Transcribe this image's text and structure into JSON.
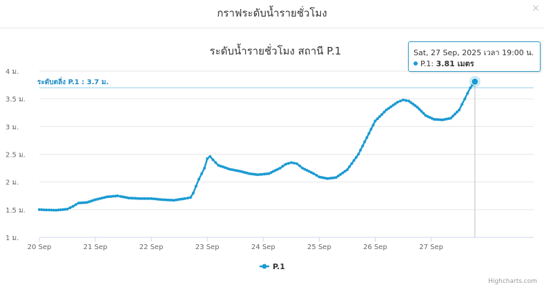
{
  "modal": {
    "title": "กราฟระดับน้ำรายชั่วโมง",
    "close_label": "×"
  },
  "tooltip": {
    "header": "Sat, 27 Sep, 2025 เวลา 19:00 น.",
    "series_label": "P.1: ",
    "value": "3.81",
    "unit": " เมตร"
  },
  "credits": "Highcharts.com",
  "colors": {
    "series": "#1a9ad2",
    "plotline": "#8fcfe8",
    "plotline_label": "#1a8ac2"
  },
  "chart_data": {
    "type": "line",
    "title": "ระดับน้ำรายชั่วโมง สถานี P.1",
    "xlabel": "",
    "ylabel": "",
    "x_range": [
      0,
      8.83
    ],
    "ylim": [
      1,
      4
    ],
    "x_ticks": [
      {
        "x": 0,
        "label": "20 Sep"
      },
      {
        "x": 1,
        "label": "21 Sep"
      },
      {
        "x": 2,
        "label": "22 Sep"
      },
      {
        "x": 3,
        "label": "23 Sep"
      },
      {
        "x": 4,
        "label": "24 Sep"
      },
      {
        "x": 5,
        "label": "25 Sep"
      },
      {
        "x": 6,
        "label": "26 Sep"
      },
      {
        "x": 7,
        "label": "27 Sep"
      }
    ],
    "y_ticks": [
      {
        "y": 1,
        "label": "1 ม."
      },
      {
        "y": 1.5,
        "label": "1.5 ม."
      },
      {
        "y": 2,
        "label": "2 ม."
      },
      {
        "y": 2.5,
        "label": "2.5 ม."
      },
      {
        "y": 3,
        "label": "3 ม."
      },
      {
        "y": 3.5,
        "label": "3.5 ม."
      },
      {
        "y": 4,
        "label": "4 ม."
      }
    ],
    "plot_line": {
      "y": 3.7,
      "label": "ระดับตลิ่ง P.1 : 3.7 ม."
    },
    "legend": {
      "position": "bottom-center"
    },
    "series": [
      {
        "name": "P.1",
        "points": [
          [
            0,
            1.5
          ],
          [
            0.3,
            1.49
          ],
          [
            0.5,
            1.51
          ],
          [
            0.6,
            1.56
          ],
          [
            0.7,
            1.62
          ],
          [
            0.85,
            1.63
          ],
          [
            1.0,
            1.68
          ],
          [
            1.2,
            1.73
          ],
          [
            1.4,
            1.75
          ],
          [
            1.45,
            1.74
          ],
          [
            1.6,
            1.71
          ],
          [
            1.8,
            1.7
          ],
          [
            2.0,
            1.7
          ],
          [
            2.2,
            1.68
          ],
          [
            2.4,
            1.67
          ],
          [
            2.6,
            1.7
          ],
          [
            2.7,
            1.72
          ],
          [
            2.75,
            1.8
          ],
          [
            2.85,
            2.05
          ],
          [
            2.95,
            2.25
          ],
          [
            3.0,
            2.42
          ],
          [
            3.05,
            2.46
          ],
          [
            3.1,
            2.4
          ],
          [
            3.2,
            2.3
          ],
          [
            3.4,
            2.23
          ],
          [
            3.6,
            2.19
          ],
          [
            3.75,
            2.15
          ],
          [
            3.9,
            2.13
          ],
          [
            4.1,
            2.15
          ],
          [
            4.3,
            2.25
          ],
          [
            4.4,
            2.32
          ],
          [
            4.5,
            2.35
          ],
          [
            4.6,
            2.33
          ],
          [
            4.7,
            2.25
          ],
          [
            4.9,
            2.15
          ],
          [
            5.0,
            2.09
          ],
          [
            5.15,
            2.06
          ],
          [
            5.3,
            2.08
          ],
          [
            5.5,
            2.22
          ],
          [
            5.7,
            2.5
          ],
          [
            5.85,
            2.8
          ],
          [
            6.0,
            3.1
          ],
          [
            6.2,
            3.3
          ],
          [
            6.4,
            3.44
          ],
          [
            6.5,
            3.48
          ],
          [
            6.6,
            3.46
          ],
          [
            6.75,
            3.35
          ],
          [
            6.9,
            3.2
          ],
          [
            7.05,
            3.13
          ],
          [
            7.2,
            3.12
          ],
          [
            7.35,
            3.15
          ],
          [
            7.5,
            3.3
          ],
          [
            7.6,
            3.5
          ],
          [
            7.7,
            3.7
          ],
          [
            7.78,
            3.81
          ]
        ]
      }
    ]
  }
}
